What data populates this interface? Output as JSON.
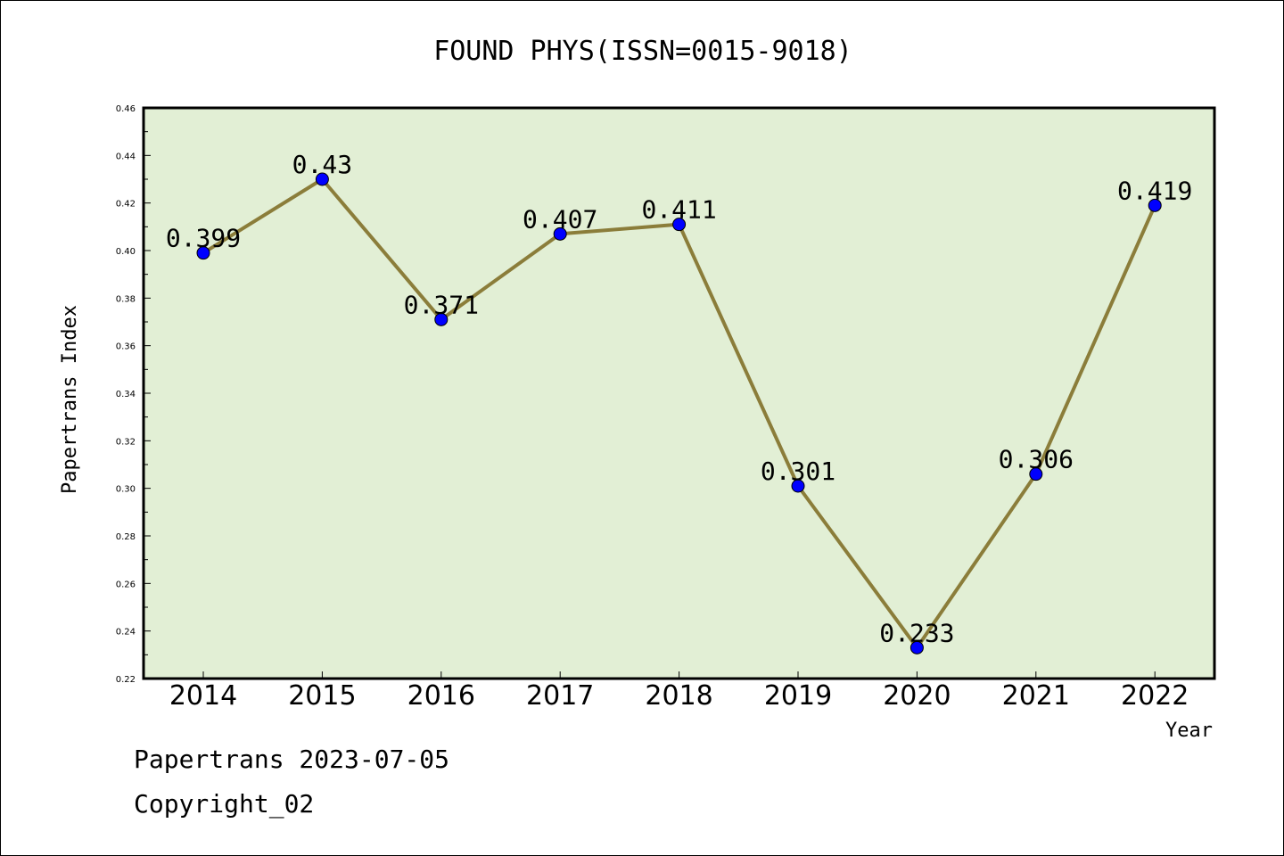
{
  "chart_data": {
    "type": "line",
    "title": "FOUND PHYS(ISSN=0015-9018)",
    "xlabel": "Year",
    "ylabel": "Papertrans Index",
    "categories": [
      "2014",
      "2015",
      "2016",
      "2017",
      "2018",
      "2019",
      "2020",
      "2021",
      "2022"
    ],
    "series": [
      {
        "values": [
          0.399,
          0.43,
          0.371,
          0.407,
          0.411,
          0.301,
          0.233,
          0.306,
          0.419
        ]
      }
    ],
    "data_labels": [
      "0.399",
      "0.43",
      "0.371",
      "0.407",
      "0.411",
      "0.301",
      "0.233",
      "0.306",
      "0.419"
    ],
    "ylim": [
      0.22,
      0.46
    ],
    "yticks": [
      "0.22",
      "0.24",
      "0.26",
      "0.28",
      "0.30",
      "0.32",
      "0.34",
      "0.36",
      "0.38",
      "0.40",
      "0.42",
      "0.44",
      "0.46"
    ],
    "grid": false,
    "legend": "none",
    "colors": {
      "plot_bg": "#e2efd5",
      "line": "#8b7d3a",
      "marker": "#0000ff",
      "frame": "#000000"
    }
  },
  "footer": {
    "line1": "Papertrans 2023-07-05",
    "line2": "Copyright_02"
  }
}
